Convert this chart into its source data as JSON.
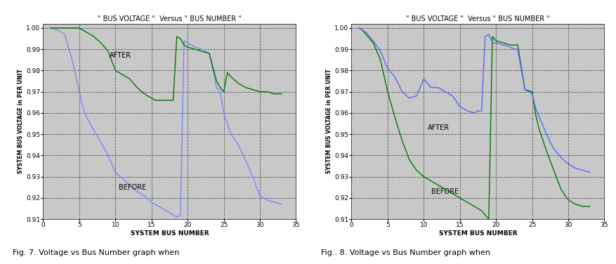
{
  "title": "\" BUS VOLTAGE \"  Versus \" BUS NUMBER \"",
  "xlabel": "SYSTEM BUS NUMBER",
  "ylabel": "SYSTEM BUS VOLTAGE in PER UNIT",
  "xlim": [
    0,
    35
  ],
  "ylim": [
    0.91,
    1.002
  ],
  "yticks": [
    0.91,
    0.92,
    0.93,
    0.94,
    0.95,
    0.96,
    0.97,
    0.98,
    0.99,
    1
  ],
  "xticks": [
    0,
    5,
    10,
    15,
    20,
    25,
    30,
    35
  ],
  "fig7_before_x": [
    1,
    2,
    3,
    4,
    4.5,
    5,
    5.5,
    6,
    7,
    8,
    9,
    10,
    11,
    12,
    13,
    14,
    15,
    16,
    17,
    18,
    18.5,
    19,
    19.5,
    20,
    21,
    22,
    23,
    24,
    24.5,
    25,
    25.5,
    26,
    27,
    28,
    29,
    30,
    31,
    32,
    33
  ],
  "fig7_before_y": [
    1.0,
    0.999,
    0.997,
    0.985,
    0.978,
    0.97,
    0.963,
    0.958,
    0.952,
    0.946,
    0.94,
    0.932,
    0.929,
    0.926,
    0.923,
    0.921,
    0.918,
    0.916,
    0.914,
    0.912,
    0.911,
    0.912,
    0.994,
    0.993,
    0.991,
    0.99,
    0.988,
    0.972,
    0.97,
    0.96,
    0.955,
    0.95,
    0.945,
    0.938,
    0.93,
    0.921,
    0.919,
    0.918,
    0.917
  ],
  "fig7_after_x": [
    1,
    1.5,
    2,
    3,
    4,
    5,
    5.5,
    6,
    7,
    8,
    9,
    10,
    11,
    12,
    13,
    14,
    15,
    15.5,
    16,
    17,
    17.5,
    18,
    18.5,
    19,
    19.5,
    20,
    21,
    22,
    23,
    24,
    24.5,
    25,
    25.5,
    26,
    27,
    28,
    29,
    30,
    31,
    32,
    33
  ],
  "fig7_after_y": [
    1.0,
    1.0,
    1.0,
    1.0,
    1.0,
    1.0,
    0.999,
    0.998,
    0.996,
    0.993,
    0.989,
    0.98,
    0.978,
    0.976,
    0.972,
    0.969,
    0.967,
    0.966,
    0.966,
    0.966,
    0.966,
    0.966,
    0.996,
    0.995,
    0.992,
    0.991,
    0.99,
    0.989,
    0.988,
    0.975,
    0.972,
    0.97,
    0.979,
    0.977,
    0.974,
    0.972,
    0.971,
    0.97,
    0.97,
    0.969,
    0.969
  ],
  "fig8_before_x": [
    1,
    1.5,
    2,
    3,
    4,
    5,
    6,
    7,
    8,
    9,
    10,
    11,
    12,
    13,
    14,
    15,
    16,
    17,
    18,
    18.5,
    19,
    19.5,
    20,
    21,
    22,
    23,
    24,
    25,
    25.5,
    26,
    27,
    28,
    29,
    30,
    31,
    32,
    33
  ],
  "fig8_before_y": [
    1.0,
    0.999,
    0.997,
    0.993,
    0.985,
    0.97,
    0.958,
    0.947,
    0.938,
    0.933,
    0.93,
    0.928,
    0.926,
    0.924,
    0.922,
    0.92,
    0.918,
    0.916,
    0.914,
    0.912,
    0.91,
    0.996,
    0.994,
    0.993,
    0.992,
    0.992,
    0.971,
    0.97,
    0.959,
    0.952,
    0.942,
    0.933,
    0.924,
    0.919,
    0.917,
    0.916,
    0.916
  ],
  "fig8_after_x": [
    1,
    1.5,
    2,
    3,
    4,
    5,
    6,
    7,
    8,
    9,
    10,
    10.5,
    11,
    12,
    12.5,
    13,
    14,
    15,
    16,
    17,
    17.5,
    18,
    18.5,
    19,
    19.5,
    20,
    21,
    22,
    22.5,
    23,
    24,
    24.5,
    25,
    25.5,
    26,
    27,
    28,
    29,
    30,
    31,
    32,
    33
  ],
  "fig8_after_y": [
    1.0,
    0.999,
    0.998,
    0.994,
    0.989,
    0.981,
    0.977,
    0.97,
    0.967,
    0.968,
    0.976,
    0.974,
    0.972,
    0.972,
    0.971,
    0.97,
    0.968,
    0.963,
    0.961,
    0.96,
    0.961,
    0.961,
    0.996,
    0.997,
    0.993,
    0.993,
    0.992,
    0.991,
    0.99,
    0.99,
    0.971,
    0.97,
    0.969,
    0.962,
    0.958,
    0.95,
    0.943,
    0.939,
    0.936,
    0.934,
    0.933,
    0.932
  ],
  "before_color_fig7": "#7788ff",
  "after_color_fig7": "#007700",
  "before_color_fig8": "#007700",
  "after_color_fig8": "#5566ff",
  "bg_color": "#c8c8c8",
  "fig7_caption": "Fig. 7. Voltage vs Bus Number graph when",
  "fig8_caption": "Fig.. 8. Voltage vs Bus Number graph when"
}
